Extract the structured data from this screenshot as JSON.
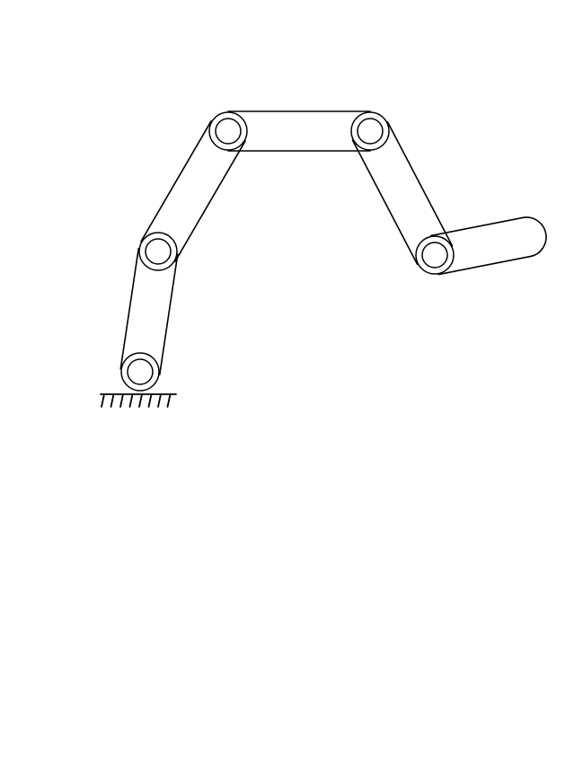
{
  "diagram": {
    "type": "serial-link-manipulator",
    "colors": {
      "stroke": "#000000",
      "background": "#ffffff"
    },
    "joints": [
      {
        "id": "joint-1",
        "kind": "revolute"
      },
      {
        "id": "joint-2",
        "kind": "revolute"
      },
      {
        "id": "joint-3",
        "kind": "revolute"
      },
      {
        "id": "joint-4",
        "kind": "revolute"
      },
      {
        "id": "joint-5",
        "kind": "revolute"
      }
    ],
    "links": [
      {
        "id": "link-1",
        "from": "joint-1",
        "to": "joint-2"
      },
      {
        "id": "link-2",
        "from": "joint-2",
        "to": "joint-3"
      },
      {
        "id": "link-3",
        "from": "joint-3",
        "to": "joint-4"
      },
      {
        "id": "link-4",
        "from": "joint-4",
        "to": "joint-5"
      },
      {
        "id": "link-5",
        "from": "joint-5",
        "to": "end-effector"
      }
    ],
    "base": {
      "kind": "fixed-ground",
      "attached_to": "joint-1"
    }
  }
}
